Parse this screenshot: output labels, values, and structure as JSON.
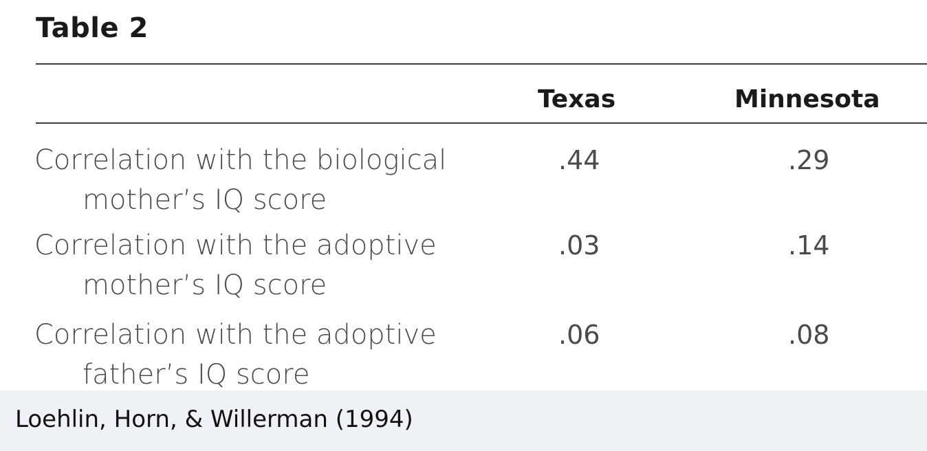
{
  "table": {
    "title": "Table 2",
    "columns": {
      "texas": "Texas",
      "minnesota": "Minnesota"
    },
    "rows": [
      {
        "label_line1": "Correlation with the biological",
        "label_line2": "mother’s IQ score",
        "texas": ".44",
        "minnesota": ".29"
      },
      {
        "label_line1": "Correlation with the adoptive",
        "label_line2": "mother’s IQ score",
        "texas": ".03",
        "minnesota": ".14"
      },
      {
        "label_line1": "Correlation with the adoptive",
        "label_line2": "father’s IQ score",
        "texas": ".06",
        "minnesota": ".08"
      }
    ]
  },
  "caption": {
    "text": "Loehlin, Horn, & Willerman (1994)",
    "background": "#eef2f7"
  }
}
